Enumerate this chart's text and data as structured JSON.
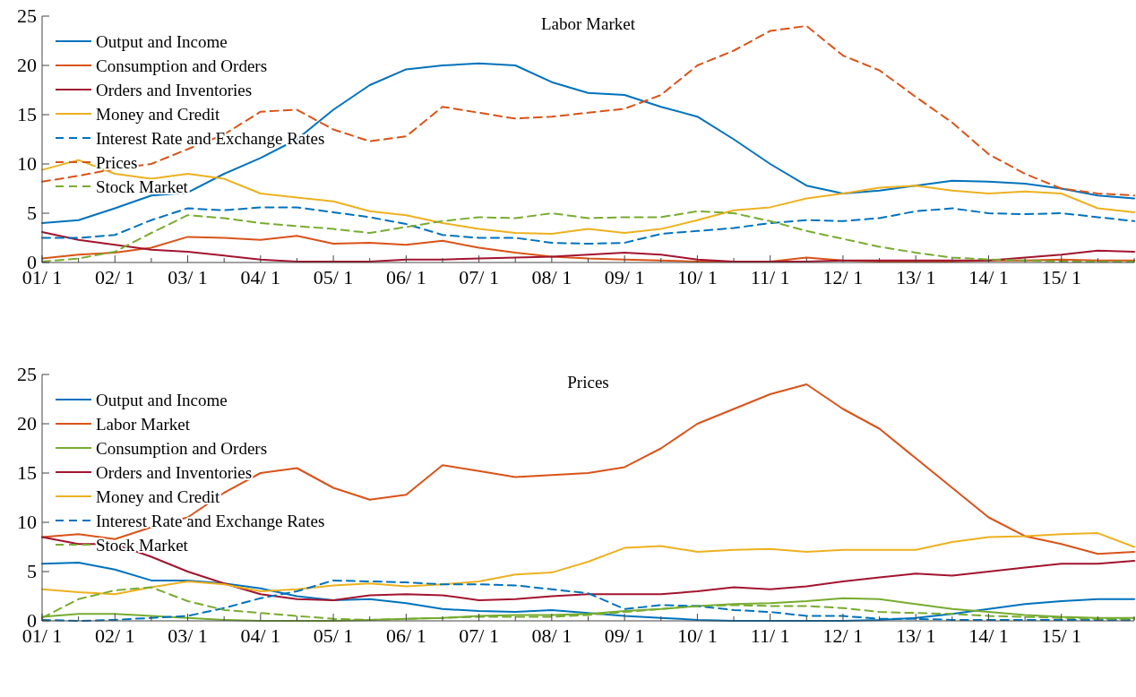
{
  "chart_data": [
    {
      "type": "line",
      "title": "Labor Market",
      "categories": [
        "01/ 1",
        null,
        "02/ 1",
        null,
        "03/ 1",
        null,
        "04/ 1",
        null,
        "05/ 1",
        null,
        "06/ 1",
        null,
        "07/ 1",
        null,
        "08/ 1",
        null,
        "09/ 1",
        null,
        "10/ 1",
        null,
        "11/ 1",
        null,
        "12/ 1",
        null,
        "13/ 1",
        null,
        "14/ 1",
        null,
        "15/ 1",
        null,
        null
      ],
      "ylim": [
        0,
        25
      ],
      "yticks": [
        0,
        5,
        10,
        15,
        20,
        25
      ],
      "grid": false,
      "legend": "top left",
      "series": [
        {
          "name": "Output and Income",
          "color": "#0072bd",
          "line_style": "solid",
          "values": [
            4.0,
            4.3,
            5.5,
            6.8,
            7.1,
            9.0,
            10.6,
            12.5,
            15.5,
            18.0,
            19.6,
            20.0,
            20.2,
            20.0,
            18.3,
            17.2,
            17.0,
            15.8,
            14.8,
            12.5,
            10.0,
            7.8,
            7.0,
            7.3,
            7.8,
            8.3,
            8.2,
            8.0,
            7.5,
            6.8,
            6.5
          ]
        },
        {
          "name": "Consumption and Orders",
          "color": "#d95319",
          "line_style": "solid",
          "values": [
            0.4,
            0.8,
            1.0,
            1.5,
            2.6,
            2.5,
            2.3,
            2.7,
            1.9,
            2.0,
            1.8,
            2.2,
            1.5,
            1.0,
            0.6,
            0.4,
            0.3,
            0.2,
            0.1,
            0.1,
            0.1,
            0.5,
            0.2,
            0.1,
            0.1,
            0.1,
            0.2,
            0.2,
            0.3,
            0.2,
            0.2
          ]
        },
        {
          "name": "Orders and Inventories",
          "color": "#a2142f",
          "line_style": "solid",
          "values": [
            3.1,
            2.3,
            1.8,
            1.3,
            1.1,
            0.7,
            0.3,
            0.1,
            0.1,
            0.1,
            0.3,
            0.3,
            0.4,
            0.5,
            0.6,
            0.8,
            1.0,
            0.8,
            0.3,
            0.1,
            0.1,
            0.1,
            0.2,
            0.2,
            0.2,
            0.2,
            0.2,
            0.5,
            0.8,
            1.2,
            1.1
          ]
        },
        {
          "name": "Money and Credit",
          "color": "#edb120",
          "line_style": "solid",
          "values": [
            9.4,
            10.4,
            9.0,
            8.5,
            9.0,
            8.5,
            7.0,
            6.6,
            6.2,
            5.2,
            4.8,
            4.0,
            3.4,
            3.0,
            2.9,
            3.4,
            3.0,
            3.4,
            4.3,
            5.3,
            5.6,
            6.5,
            7.0,
            7.6,
            7.8,
            7.3,
            7.0,
            7.2,
            7.0,
            5.5,
            5.1
          ]
        },
        {
          "name": "Interest Rate and Exchange Rates",
          "color": "#0072bd",
          "line_style": "dashed",
          "values": [
            2.5,
            2.5,
            2.8,
            4.3,
            5.5,
            5.3,
            5.6,
            5.6,
            5.1,
            4.6,
            3.9,
            2.8,
            2.5,
            2.5,
            2.0,
            1.9,
            2.0,
            2.9,
            3.2,
            3.5,
            4.0,
            4.3,
            4.2,
            4.5,
            5.2,
            5.5,
            5.0,
            4.9,
            5.0,
            4.6,
            4.2
          ]
        },
        {
          "name": "Prices",
          "color": "#d95319",
          "line_style": "dashed",
          "values": [
            8.2,
            8.8,
            9.5,
            10.0,
            11.5,
            13.0,
            15.3,
            15.5,
            13.5,
            12.3,
            12.8,
            15.8,
            15.2,
            14.6,
            14.8,
            15.2,
            15.6,
            17.0,
            20.0,
            21.5,
            23.5,
            24.0,
            21.0,
            19.5,
            16.8,
            14.2,
            11.0,
            9.0,
            7.5,
            7.0,
            6.8
          ]
        },
        {
          "name": "Stock Market",
          "color": "#77ac30",
          "line_style": "dashed",
          "values": [
            0.1,
            0.4,
            1.1,
            3.0,
            4.8,
            4.5,
            4.0,
            3.7,
            3.4,
            3.0,
            3.6,
            4.2,
            4.6,
            4.5,
            5.0,
            4.5,
            4.6,
            4.6,
            5.2,
            5.0,
            4.2,
            3.2,
            2.4,
            1.6,
            1.0,
            0.5,
            0.3,
            0.2,
            0.1,
            0.1,
            0.1
          ]
        }
      ]
    },
    {
      "type": "line",
      "title": "Prices",
      "categories": [
        "01/ 1",
        null,
        "02/ 1",
        null,
        "03/ 1",
        null,
        "04/ 1",
        null,
        "05/ 1",
        null,
        "06/ 1",
        null,
        "07/ 1",
        null,
        "08/ 1",
        null,
        "09/ 1",
        null,
        "10/ 1",
        null,
        "11/ 1",
        null,
        "12/ 1",
        null,
        "13/ 1",
        null,
        "14/ 1",
        null,
        "15/ 1",
        null,
        null
      ],
      "ylim": [
        0,
        25
      ],
      "yticks": [
        0,
        5,
        10,
        15,
        20,
        25
      ],
      "grid": false,
      "legend": "top left",
      "series": [
        {
          "name": "Output and Income",
          "color": "#0072bd",
          "line_style": "solid",
          "values": [
            5.8,
            5.9,
            5.2,
            4.1,
            4.1,
            3.8,
            3.3,
            2.5,
            2.1,
            2.2,
            1.8,
            1.2,
            1.0,
            0.9,
            1.1,
            0.8,
            0.5,
            0.3,
            0.1,
            0.0,
            0.0,
            0.0,
            0.0,
            0.1,
            0.3,
            0.7,
            1.2,
            1.7,
            2.0,
            2.2,
            2.2
          ]
        },
        {
          "name": "Labor Market",
          "color": "#d95319",
          "line_style": "solid",
          "values": [
            8.5,
            8.8,
            8.3,
            9.5,
            10.5,
            13.0,
            15.0,
            15.5,
            13.5,
            12.3,
            12.8,
            15.8,
            15.2,
            14.6,
            14.8,
            15.0,
            15.6,
            17.5,
            20.0,
            21.5,
            23.0,
            24.0,
            21.5,
            19.5,
            16.5,
            13.5,
            10.5,
            8.6,
            7.8,
            6.8,
            7.0
          ]
        },
        {
          "name": "Consumption and Orders",
          "color": "#77ac30",
          "line_style": "solid",
          "values": [
            0.4,
            0.7,
            0.7,
            0.5,
            0.3,
            0.1,
            0.0,
            0.0,
            0.0,
            0.1,
            0.2,
            0.3,
            0.5,
            0.6,
            0.6,
            0.7,
            1.0,
            1.2,
            1.5,
            1.7,
            1.8,
            2.0,
            2.3,
            2.2,
            1.7,
            1.2,
            0.9,
            0.6,
            0.4,
            0.3,
            0.3
          ]
        },
        {
          "name": "Orders and Inventories",
          "color": "#a2142f",
          "line_style": "solid",
          "values": [
            8.5,
            7.8,
            7.8,
            6.5,
            5.0,
            3.8,
            2.7,
            2.2,
            2.1,
            2.6,
            2.7,
            2.6,
            2.1,
            2.2,
            2.5,
            2.7,
            2.7,
            2.7,
            3.0,
            3.4,
            3.2,
            3.5,
            4.0,
            4.4,
            4.8,
            4.6,
            5.0,
            5.4,
            5.8,
            5.8,
            6.1
          ]
        },
        {
          "name": "Money and Credit",
          "color": "#edb120",
          "line_style": "solid",
          "values": [
            3.2,
            2.9,
            2.7,
            3.4,
            4.0,
            3.7,
            3.0,
            3.2,
            3.6,
            3.8,
            3.5,
            3.7,
            4.0,
            4.7,
            4.9,
            6.0,
            7.4,
            7.6,
            7.0,
            7.2,
            7.3,
            7.0,
            7.2,
            7.2,
            7.2,
            8.0,
            8.5,
            8.6,
            8.8,
            8.9,
            7.5
          ]
        },
        {
          "name": "Interest Rate and Exchange Rates",
          "color": "#0072bd",
          "line_style": "dashed",
          "values": [
            0.1,
            0.0,
            0.1,
            0.3,
            0.5,
            1.3,
            2.3,
            3.0,
            4.1,
            4.0,
            3.9,
            3.7,
            3.7,
            3.6,
            3.2,
            2.8,
            1.2,
            1.6,
            1.5,
            1.1,
            0.9,
            0.5,
            0.5,
            0.2,
            0.2,
            0.1,
            0.1,
            0.1,
            0.1,
            0.1,
            0.1
          ]
        },
        {
          "name": "Stock Market",
          "color": "#77ac30",
          "line_style": "dashed",
          "values": [
            0.3,
            2.2,
            3.1,
            3.4,
            2.0,
            1.1,
            0.8,
            0.5,
            0.2,
            0.1,
            0.2,
            0.3,
            0.4,
            0.4,
            0.4,
            0.6,
            0.9,
            1.2,
            1.5,
            1.6,
            1.5,
            1.5,
            1.3,
            0.9,
            0.8,
            0.7,
            0.5,
            0.4,
            0.3,
            0.2,
            0.2
          ]
        }
      ]
    }
  ]
}
